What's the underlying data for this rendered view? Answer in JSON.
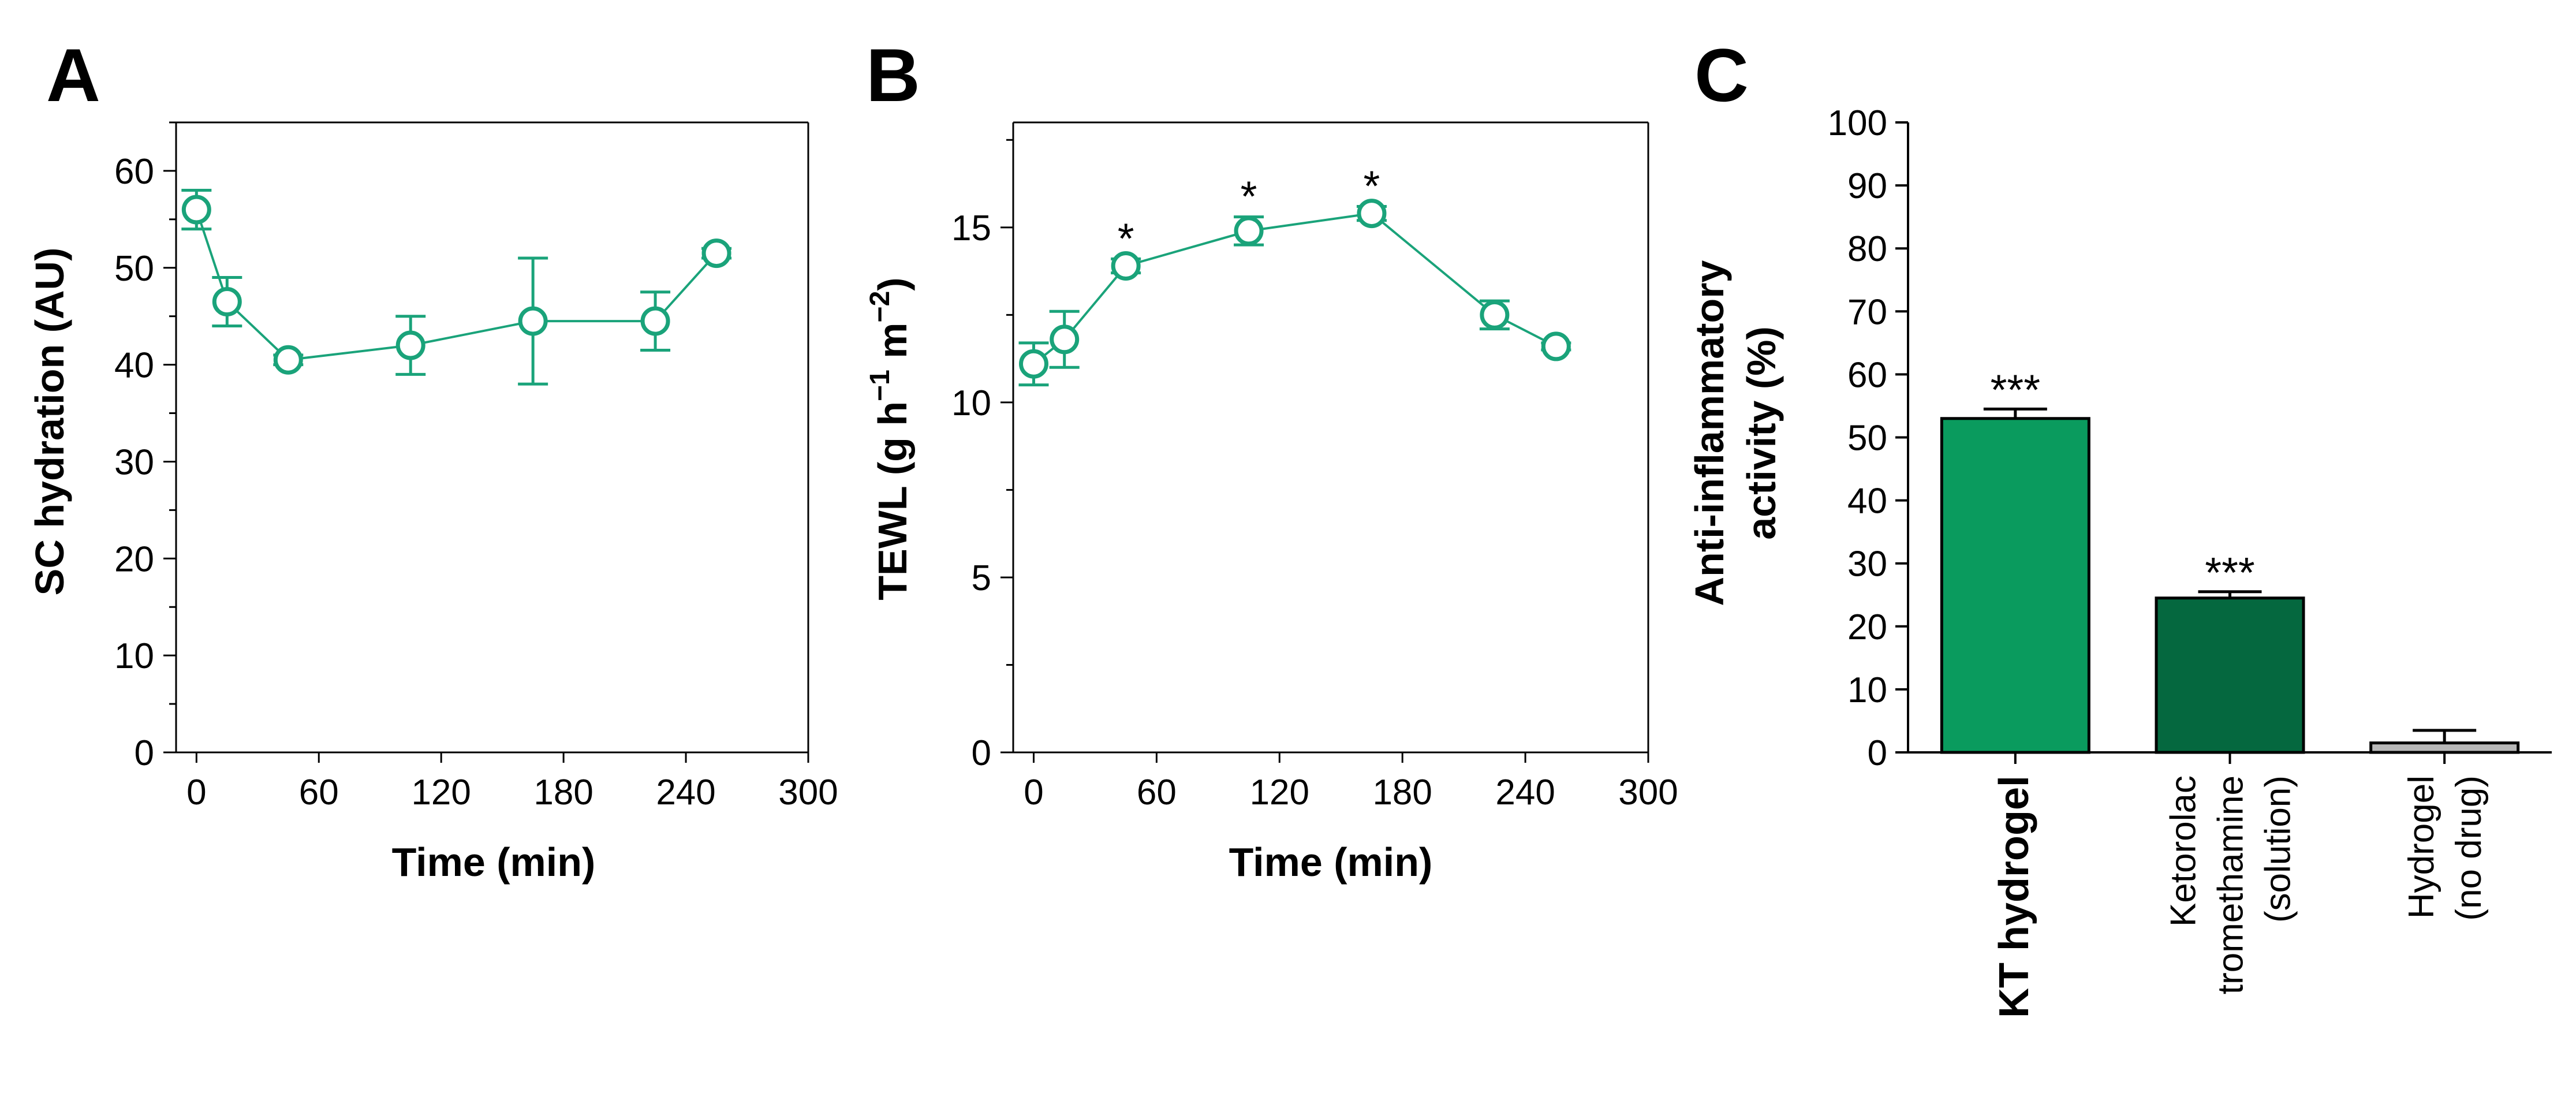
{
  "figure": {
    "panel_letters": [
      "A",
      "B",
      "C"
    ]
  },
  "colors": {
    "accent": "#1aa37a",
    "bar1": "#0a9b5e",
    "bar2": "#05683f",
    "bar3": "#b8b8b8",
    "axis": "#000000"
  },
  "chart_data": [
    {
      "id": "A",
      "type": "line",
      "xlabel": "Time (min)",
      "ylabel": "SC hydration (AU)",
      "xlim": [
        -10,
        300
      ],
      "ylim": [
        0,
        65
      ],
      "xticks": [
        0,
        60,
        120,
        180,
        240,
        300
      ],
      "yticks": [
        0,
        10,
        20,
        30,
        40,
        50,
        60
      ],
      "yminor": [
        5,
        15,
        25,
        35,
        45,
        55,
        65
      ],
      "series": [
        {
          "name": "SC hydration",
          "x": [
            0,
            15,
            45,
            105,
            165,
            225,
            255
          ],
          "y": [
            56,
            46.5,
            40.5,
            42,
            44.5,
            44.5,
            51.5
          ],
          "err": [
            2,
            2.5,
            0.5,
            3,
            6.5,
            3,
            0.5
          ]
        }
      ]
    },
    {
      "id": "B",
      "type": "line",
      "xlabel": "Time (min)",
      "ylabel": "TEWL (g h",
      "ylabel_sup1": "−1",
      "ylabel_mid": " m",
      "ylabel_sup2": "−2",
      "ylabel_end": ")",
      "xlim": [
        -10,
        300
      ],
      "ylim": [
        0,
        18
      ],
      "xticks": [
        0,
        60,
        120,
        180,
        240,
        300
      ],
      "yticks": [
        0,
        5,
        10,
        15
      ],
      "yminor": [
        2.5,
        7.5,
        12.5,
        17.5
      ],
      "series": [
        {
          "name": "TEWL",
          "x": [
            0,
            15,
            45,
            105,
            165,
            225,
            255
          ],
          "y": [
            11.1,
            11.8,
            13.9,
            14.9,
            15.4,
            12.5,
            11.6
          ],
          "err": [
            0.6,
            0.8,
            0.2,
            0.4,
            0.2,
            0.4,
            0.1
          ]
        }
      ],
      "annotations": [
        {
          "x": 45,
          "text": "*"
        },
        {
          "x": 105,
          "text": "*"
        },
        {
          "x": 165,
          "text": "*"
        }
      ]
    },
    {
      "id": "C",
      "type": "bar",
      "ylabel_line1": "Anti-inflammatory",
      "ylabel_line2": "activity (%)",
      "ylim": [
        0,
        100
      ],
      "yticks": [
        0,
        10,
        20,
        30,
        40,
        50,
        60,
        70,
        80,
        90,
        100
      ],
      "categories": [
        [
          "KT hydrogel"
        ],
        [
          "Ketorolac",
          "tromethamine",
          "(solution)"
        ],
        [
          "Hydrogel",
          "(no drug)"
        ]
      ],
      "values": [
        53,
        24.5,
        1.5
      ],
      "err": [
        1.5,
        1,
        2
      ],
      "annotations": [
        "***",
        "***",
        ""
      ]
    }
  ]
}
